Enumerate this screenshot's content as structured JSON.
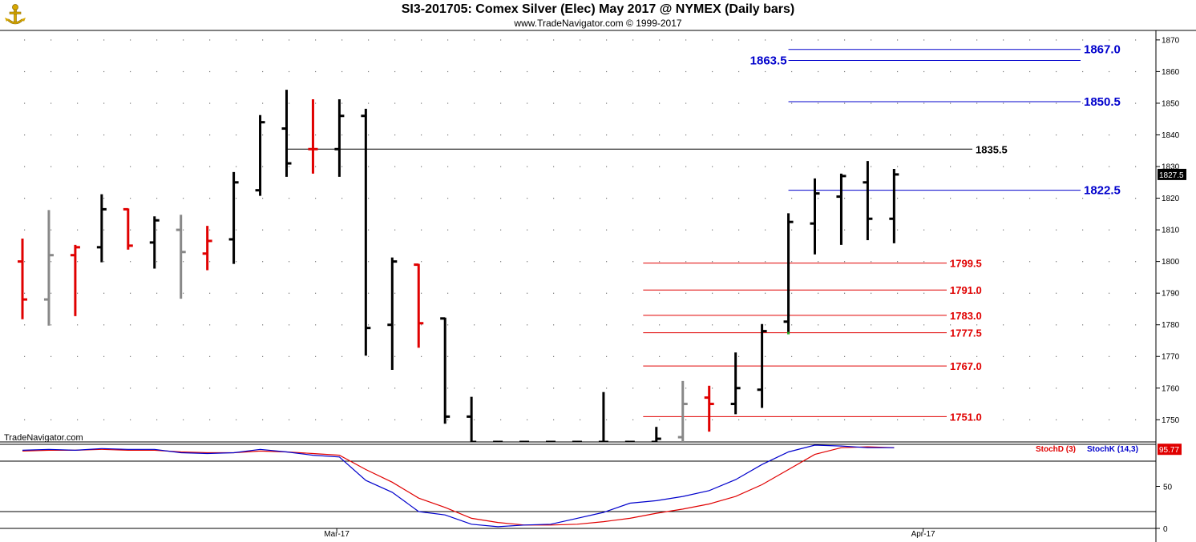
{
  "header": {
    "title": "SI3-201705:  Comex Silver (Elec) May 2017 @ NYMEX  (Daily bars)",
    "subtitle": "www.TradeNavigator.com © 1999-2017",
    "logo_icon": "trade-navigator-logo-icon"
  },
  "watermark": "TradeNavigator.com",
  "colors": {
    "up_bar": "#000000",
    "down_bar": "#e00000",
    "neutral_bar": "#888888",
    "fib_blue": "#0000cc",
    "fib_red": "#e00000",
    "stoch_d": "#e00000",
    "stoch_k": "#0000cc",
    "last_price_box": "#000000",
    "stoch_value_box": "#e00000"
  },
  "chart_data": [
    {
      "type": "ohlc",
      "ylim": [
        1743,
        1873
      ],
      "y_ticks": [
        1750,
        1760,
        1770,
        1780,
        1790,
        1800,
        1810,
        1820,
        1830,
        1840,
        1850,
        1860,
        1870
      ],
      "x_ticks": [
        {
          "label": "Mar-17",
          "bar_index": 11.9
        },
        {
          "label": "Apr-17",
          "bar_index": 34.1
        }
      ],
      "last_price_label": "1827.5",
      "last_price": 1827.5,
      "bars": [
        {
          "o": 1800,
          "h": 1807,
          "l": 1782,
          "c": 1788,
          "color": "red"
        },
        {
          "o": 1788,
          "h": 1816,
          "l": 1780,
          "c": 1802,
          "color": "gray"
        },
        {
          "o": 1802,
          "h": 1805,
          "l": 1783,
          "c": 1804.5,
          "color": "red"
        },
        {
          "o": 1804.5,
          "h": 1821,
          "l": 1800,
          "c": 1816.5,
          "color": "black"
        },
        {
          "o": 1816.5,
          "h": 1816.5,
          "l": 1804,
          "c": 1805,
          "color": "red"
        },
        {
          "o": 1806,
          "h": 1814,
          "l": 1798,
          "c": 1813,
          "color": "black"
        },
        {
          "o": 1810,
          "h": 1814.5,
          "l": 1788.5,
          "c": 1803,
          "color": "gray"
        },
        {
          "o": 1802.5,
          "h": 1811,
          "l": 1797.5,
          "c": 1806.5,
          "color": "red"
        },
        {
          "o": 1807,
          "h": 1828,
          "l": 1799.5,
          "c": 1825,
          "color": "black"
        },
        {
          "o": 1822.5,
          "h": 1846,
          "l": 1821,
          "c": 1844,
          "color": "black"
        },
        {
          "o": 1842,
          "h": 1854,
          "l": 1827,
          "c": 1831,
          "color": "black"
        },
        {
          "o": 1835.5,
          "h": 1851,
          "l": 1828,
          "c": 1835.5,
          "color": "red"
        },
        {
          "o": 1835.5,
          "h": 1851,
          "l": 1827,
          "c": 1846,
          "color": "black"
        },
        {
          "o": 1846,
          "h": 1848,
          "l": 1770.5,
          "c": 1779,
          "color": "black"
        },
        {
          "o": 1780,
          "h": 1801,
          "l": 1766,
          "c": 1800,
          "color": "black"
        },
        {
          "o": 1799,
          "h": 1799,
          "l": 1773,
          "c": 1780.5,
          "color": "red"
        },
        {
          "o": 1782,
          "h": 1782,
          "l": 1749,
          "c": 1751,
          "color": "black"
        },
        {
          "o": 1751,
          "h": 1757,
          "l": 1743,
          "c": 1743,
          "color": "black"
        },
        {
          "o": 1743,
          "h": 1743,
          "l": 1743,
          "c": 1743,
          "color": "black"
        },
        {
          "o": 1743,
          "h": 1743,
          "l": 1743,
          "c": 1743,
          "color": "black"
        },
        {
          "o": 1743,
          "h": 1743,
          "l": 1743,
          "c": 1743,
          "color": "black"
        },
        {
          "o": 1743,
          "h": 1743,
          "l": 1743,
          "c": 1743,
          "color": "black"
        },
        {
          "o": 1743,
          "h": 1758.5,
          "l": 1743,
          "c": 1743,
          "color": "black"
        },
        {
          "o": 1743,
          "h": 1743,
          "l": 1743,
          "c": 1743,
          "color": "black"
        },
        {
          "o": 1743,
          "h": 1747.5,
          "l": 1743,
          "c": 1744,
          "color": "black"
        },
        {
          "o": 1744.5,
          "h": 1762,
          "l": 1743,
          "c": 1755,
          "color": "gray"
        },
        {
          "o": 1757,
          "h": 1760.5,
          "l": 1746.5,
          "c": 1755,
          "color": "red"
        },
        {
          "o": 1755,
          "h": 1771,
          "l": 1752,
          "c": 1760,
          "color": "black"
        },
        {
          "o": 1759.5,
          "h": 1780,
          "l": 1754,
          "c": 1778,
          "color": "black"
        },
        {
          "o": 1781,
          "h": 1815,
          "l": 1777.5,
          "c": 1812.5,
          "color": "black"
        },
        {
          "o": 1812,
          "h": 1826,
          "l": 1802.5,
          "c": 1821.5,
          "color": "black"
        },
        {
          "o": 1820.5,
          "h": 1827.5,
          "l": 1805.5,
          "c": 1827,
          "color": "black"
        },
        {
          "o": 1825,
          "h": 1831.5,
          "l": 1807,
          "c": 1813.5,
          "color": "black"
        },
        {
          "o": 1813.5,
          "h": 1829,
          "l": 1806,
          "c": 1827.5,
          "color": "black"
        }
      ],
      "levels": [
        {
          "value": 1867.0,
          "label": "1867.0",
          "color": "blue",
          "start_bar": 29
        },
        {
          "value": 1863.5,
          "label": "1863.5",
          "color": "blue",
          "start_bar": 29,
          "label_side": "left"
        },
        {
          "value": 1850.5,
          "label": "1850.5",
          "color": "blue",
          "start_bar": 29
        },
        {
          "value": 1835.5,
          "label": "1835.5",
          "color": "black",
          "start_bar": 10
        },
        {
          "value": 1822.5,
          "label": "1822.5",
          "color": "blue",
          "start_bar": 29
        },
        {
          "value": 1799.5,
          "label": "1799.5",
          "color": "red",
          "start_bar": 23.5
        },
        {
          "value": 1791.0,
          "label": "1791.0",
          "color": "red",
          "start_bar": 23.5
        },
        {
          "value": 1783.0,
          "label": "1783.0",
          "color": "red",
          "start_bar": 23.5
        },
        {
          "value": 1777.5,
          "label": "1777.5",
          "color": "red",
          "start_bar": 23.5
        },
        {
          "value": 1767.0,
          "label": "1767.0",
          "color": "red",
          "start_bar": 23.5
        },
        {
          "value": 1751.0,
          "label": "1751.0",
          "color": "red",
          "start_bar": 23.5
        }
      ]
    },
    {
      "type": "line",
      "ylim": [
        0,
        100
      ],
      "y_ticks": [
        0,
        50
      ],
      "reference_lines": [
        80,
        20
      ],
      "last_value_label": "95.77",
      "series": [
        {
          "name": "StochD (3)",
          "color": "red",
          "values": [
            92,
            93,
            93,
            94,
            93,
            93,
            91,
            90,
            90,
            92,
            91,
            89,
            87,
            70,
            55,
            36,
            25,
            12,
            7,
            4,
            4,
            5,
            8,
            12,
            18,
            23,
            29,
            38,
            52,
            70,
            88,
            96,
            97,
            96
          ]
        },
        {
          "name": "StochK (14,3)",
          "color": "blue",
          "values": [
            93,
            94,
            93,
            95,
            94,
            94,
            90,
            89,
            90,
            94,
            91,
            87,
            85,
            57,
            43,
            20,
            16,
            5,
            2,
            4,
            5,
            12,
            19,
            30,
            33,
            38,
            45,
            58,
            76,
            91,
            99,
            98,
            96,
            96
          ]
        }
      ]
    }
  ]
}
